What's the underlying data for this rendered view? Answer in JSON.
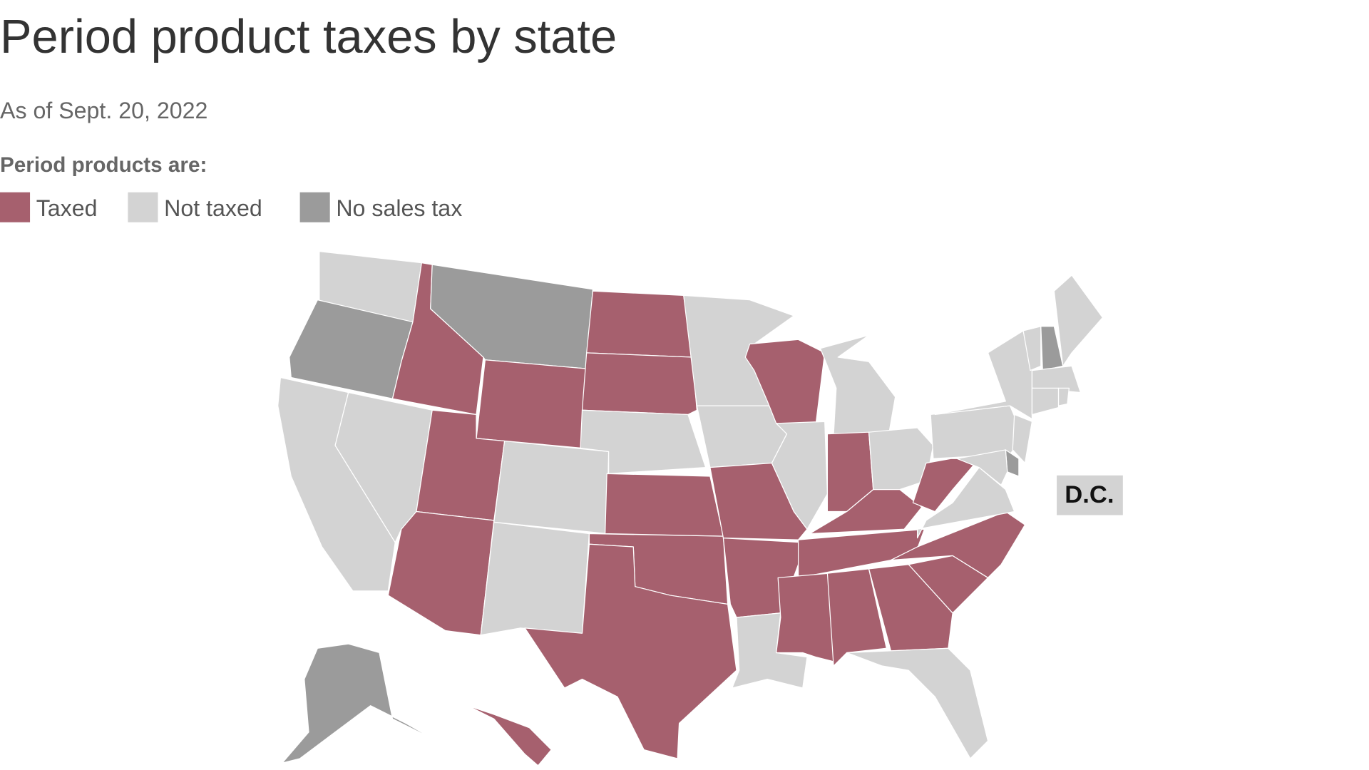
{
  "title": "Period product taxes by state",
  "subtitle": "As of Sept. 20, 2022",
  "legend": {
    "title": "Period products are:",
    "items": [
      {
        "label": "Taxed",
        "color": "#a6606e"
      },
      {
        "label": "Not taxed",
        "color": "#d3d3d3"
      },
      {
        "label": "No sales tax",
        "color": "#9b9b9b"
      }
    ]
  },
  "states": {
    "WA": 1,
    "OR": 2,
    "CA": 1,
    "ID": 0,
    "NV": 1,
    "MT": 2,
    "WY": 0,
    "UT": 0,
    "AZ": 0,
    "CO": 1,
    "NM": 1,
    "ND": 0,
    "SD": 0,
    "NE": 1,
    "KS": 0,
    "OK": 0,
    "TX": 0,
    "MN": 1,
    "IA": 1,
    "MO": 0,
    "AR": 0,
    "LA": 1,
    "WI": 0,
    "IL": 1,
    "MI": 1,
    "IN": 0,
    "OH": 1,
    "KY": 0,
    "TN": 0,
    "MS": 0,
    "AL": 0,
    "GA": 0,
    "FL": 1,
    "SC": 0,
    "NC": 0,
    "VA": 1,
    "WV": 0,
    "PA": 1,
    "NY": 1,
    "NJ": 1,
    "DE": 2,
    "MD": 1,
    "VT": 1,
    "NH": 2,
    "ME": 1,
    "MA": 1,
    "CT": 1,
    "RI": 1,
    "AK": 2,
    "HI": 0
  },
  "annotations": [
    {
      "label": "D.C.",
      "status": 1
    }
  ]
}
